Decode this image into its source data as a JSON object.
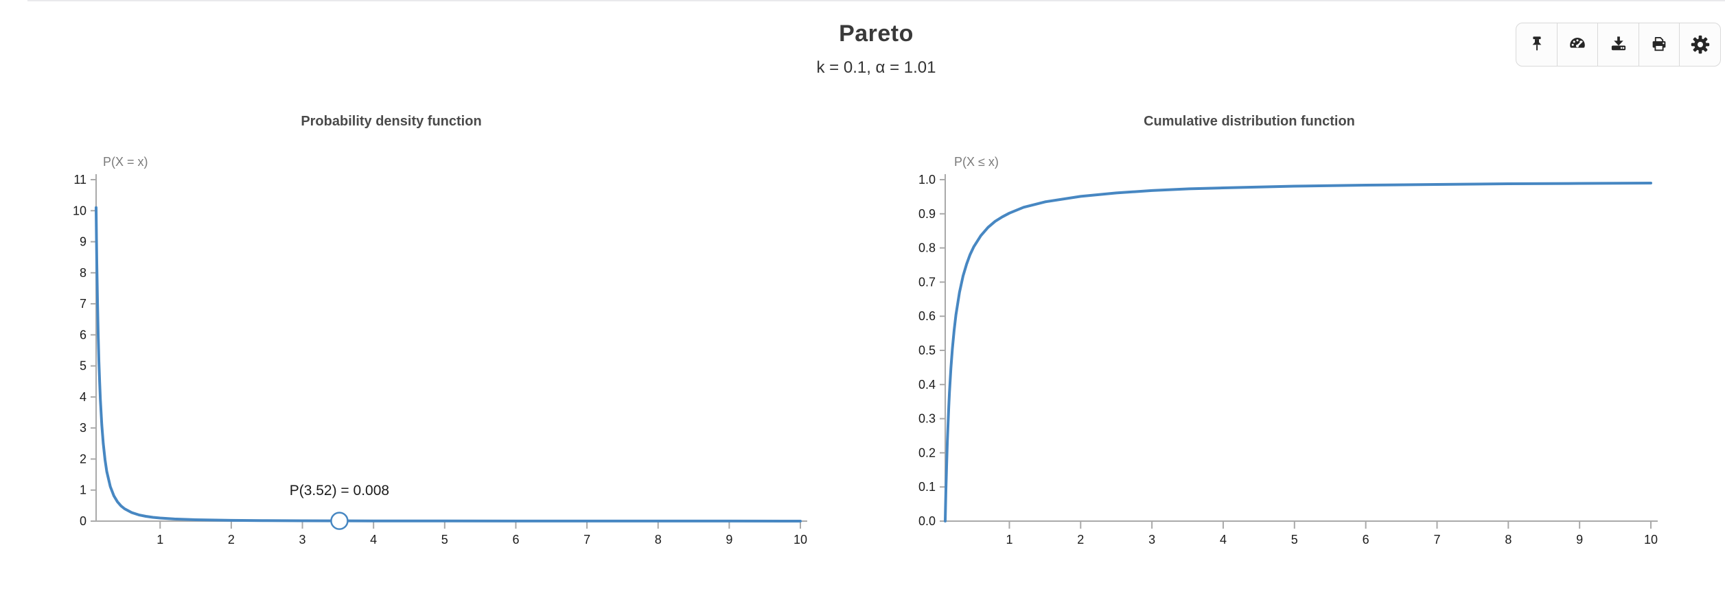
{
  "header": {
    "title": "Pareto",
    "subtitle": "k = 0.1, α = 1.01"
  },
  "toolbar": {
    "buttons": [
      {
        "name": "pin",
        "icon": "pin-icon"
      },
      {
        "name": "dashboard",
        "icon": "dashboard-icon"
      },
      {
        "name": "download",
        "icon": "download-icon"
      },
      {
        "name": "print",
        "icon": "print-icon"
      },
      {
        "name": "settings",
        "icon": "gear-icon"
      }
    ]
  },
  "colors": {
    "curve": "#4787c2",
    "axis": "#a9a9a9",
    "tick_text": "#1a1a1a",
    "marker_fill": "#ffffff",
    "toolbar_icon": "#262626"
  },
  "chart_data": [
    {
      "type": "line",
      "name": "pdf",
      "title": "Probability density function",
      "ylabel": "P(X = x)",
      "xlabel": "",
      "xlim": [
        0.1,
        10
      ],
      "ylim": [
        0,
        11
      ],
      "grid": false,
      "xticks": [
        "1",
        "2",
        "3",
        "4",
        "5",
        "6",
        "7",
        "8",
        "9",
        "10"
      ],
      "yticks": [
        "0",
        "1",
        "2",
        "3",
        "4",
        "5",
        "6",
        "7",
        "8",
        "9",
        "10",
        "11"
      ],
      "x": [
        0.1,
        0.105,
        0.11,
        0.115,
        0.12,
        0.13,
        0.14,
        0.15,
        0.16,
        0.18,
        0.2,
        0.225,
        0.25,
        0.3,
        0.35,
        0.4,
        0.45,
        0.5,
        0.6,
        0.7,
        0.8,
        0.9,
        1,
        1.2,
        1.5,
        2,
        2.5,
        3,
        3.52,
        4,
        5,
        6,
        7,
        8,
        9,
        10
      ],
      "y": [
        10.1,
        9.153,
        8.327,
        7.614,
        6.99,
        5.952,
        5.128,
        4.463,
        3.921,
        3.096,
        2.506,
        1.978,
        1.601,
        1.11,
        0.814,
        0.622,
        0.491,
        0.398,
        0.276,
        0.202,
        0.155,
        0.122,
        0.099,
        0.068,
        0.044,
        0.025,
        0.016,
        0.011,
        0.008,
        0.006,
        0.004,
        0.003,
        0.002,
        0.0015,
        0.0012,
        0.001
      ],
      "annotation": {
        "label": "P(3.52) = 0.008",
        "x": 3.52,
        "y": 0.008
      }
    },
    {
      "type": "line",
      "name": "cdf",
      "title": "Cumulative distribution function",
      "ylabel": "P(X ≤ x)",
      "xlabel": "",
      "xlim": [
        0.1,
        10
      ],
      "ylim": [
        0,
        1
      ],
      "grid": false,
      "xticks": [
        "1",
        "2",
        "3",
        "4",
        "5",
        "6",
        "7",
        "8",
        "9",
        "10"
      ],
      "yticks": [
        "0.0",
        "0.1",
        "0.2",
        "0.3",
        "0.4",
        "0.5",
        "0.6",
        "0.7",
        "0.8",
        "0.9",
        "1.0"
      ],
      "x": [
        0.1,
        0.105,
        0.11,
        0.115,
        0.12,
        0.13,
        0.14,
        0.15,
        0.16,
        0.18,
        0.2,
        0.225,
        0.25,
        0.3,
        0.35,
        0.4,
        0.45,
        0.5,
        0.6,
        0.7,
        0.8,
        0.9,
        1,
        1.2,
        1.5,
        2,
        2.5,
        3,
        3.52,
        4,
        5,
        6,
        7,
        8,
        9,
        10
      ],
      "y": [
        0,
        0.048,
        0.092,
        0.132,
        0.168,
        0.233,
        0.288,
        0.336,
        0.378,
        0.448,
        0.504,
        0.559,
        0.604,
        0.67,
        0.718,
        0.753,
        0.781,
        0.803,
        0.836,
        0.86,
        0.878,
        0.891,
        0.902,
        0.919,
        0.935,
        0.951,
        0.961,
        0.968,
        0.973,
        0.976,
        0.981,
        0.984,
        0.986,
        0.988,
        0.989,
        0.99
      ]
    }
  ]
}
